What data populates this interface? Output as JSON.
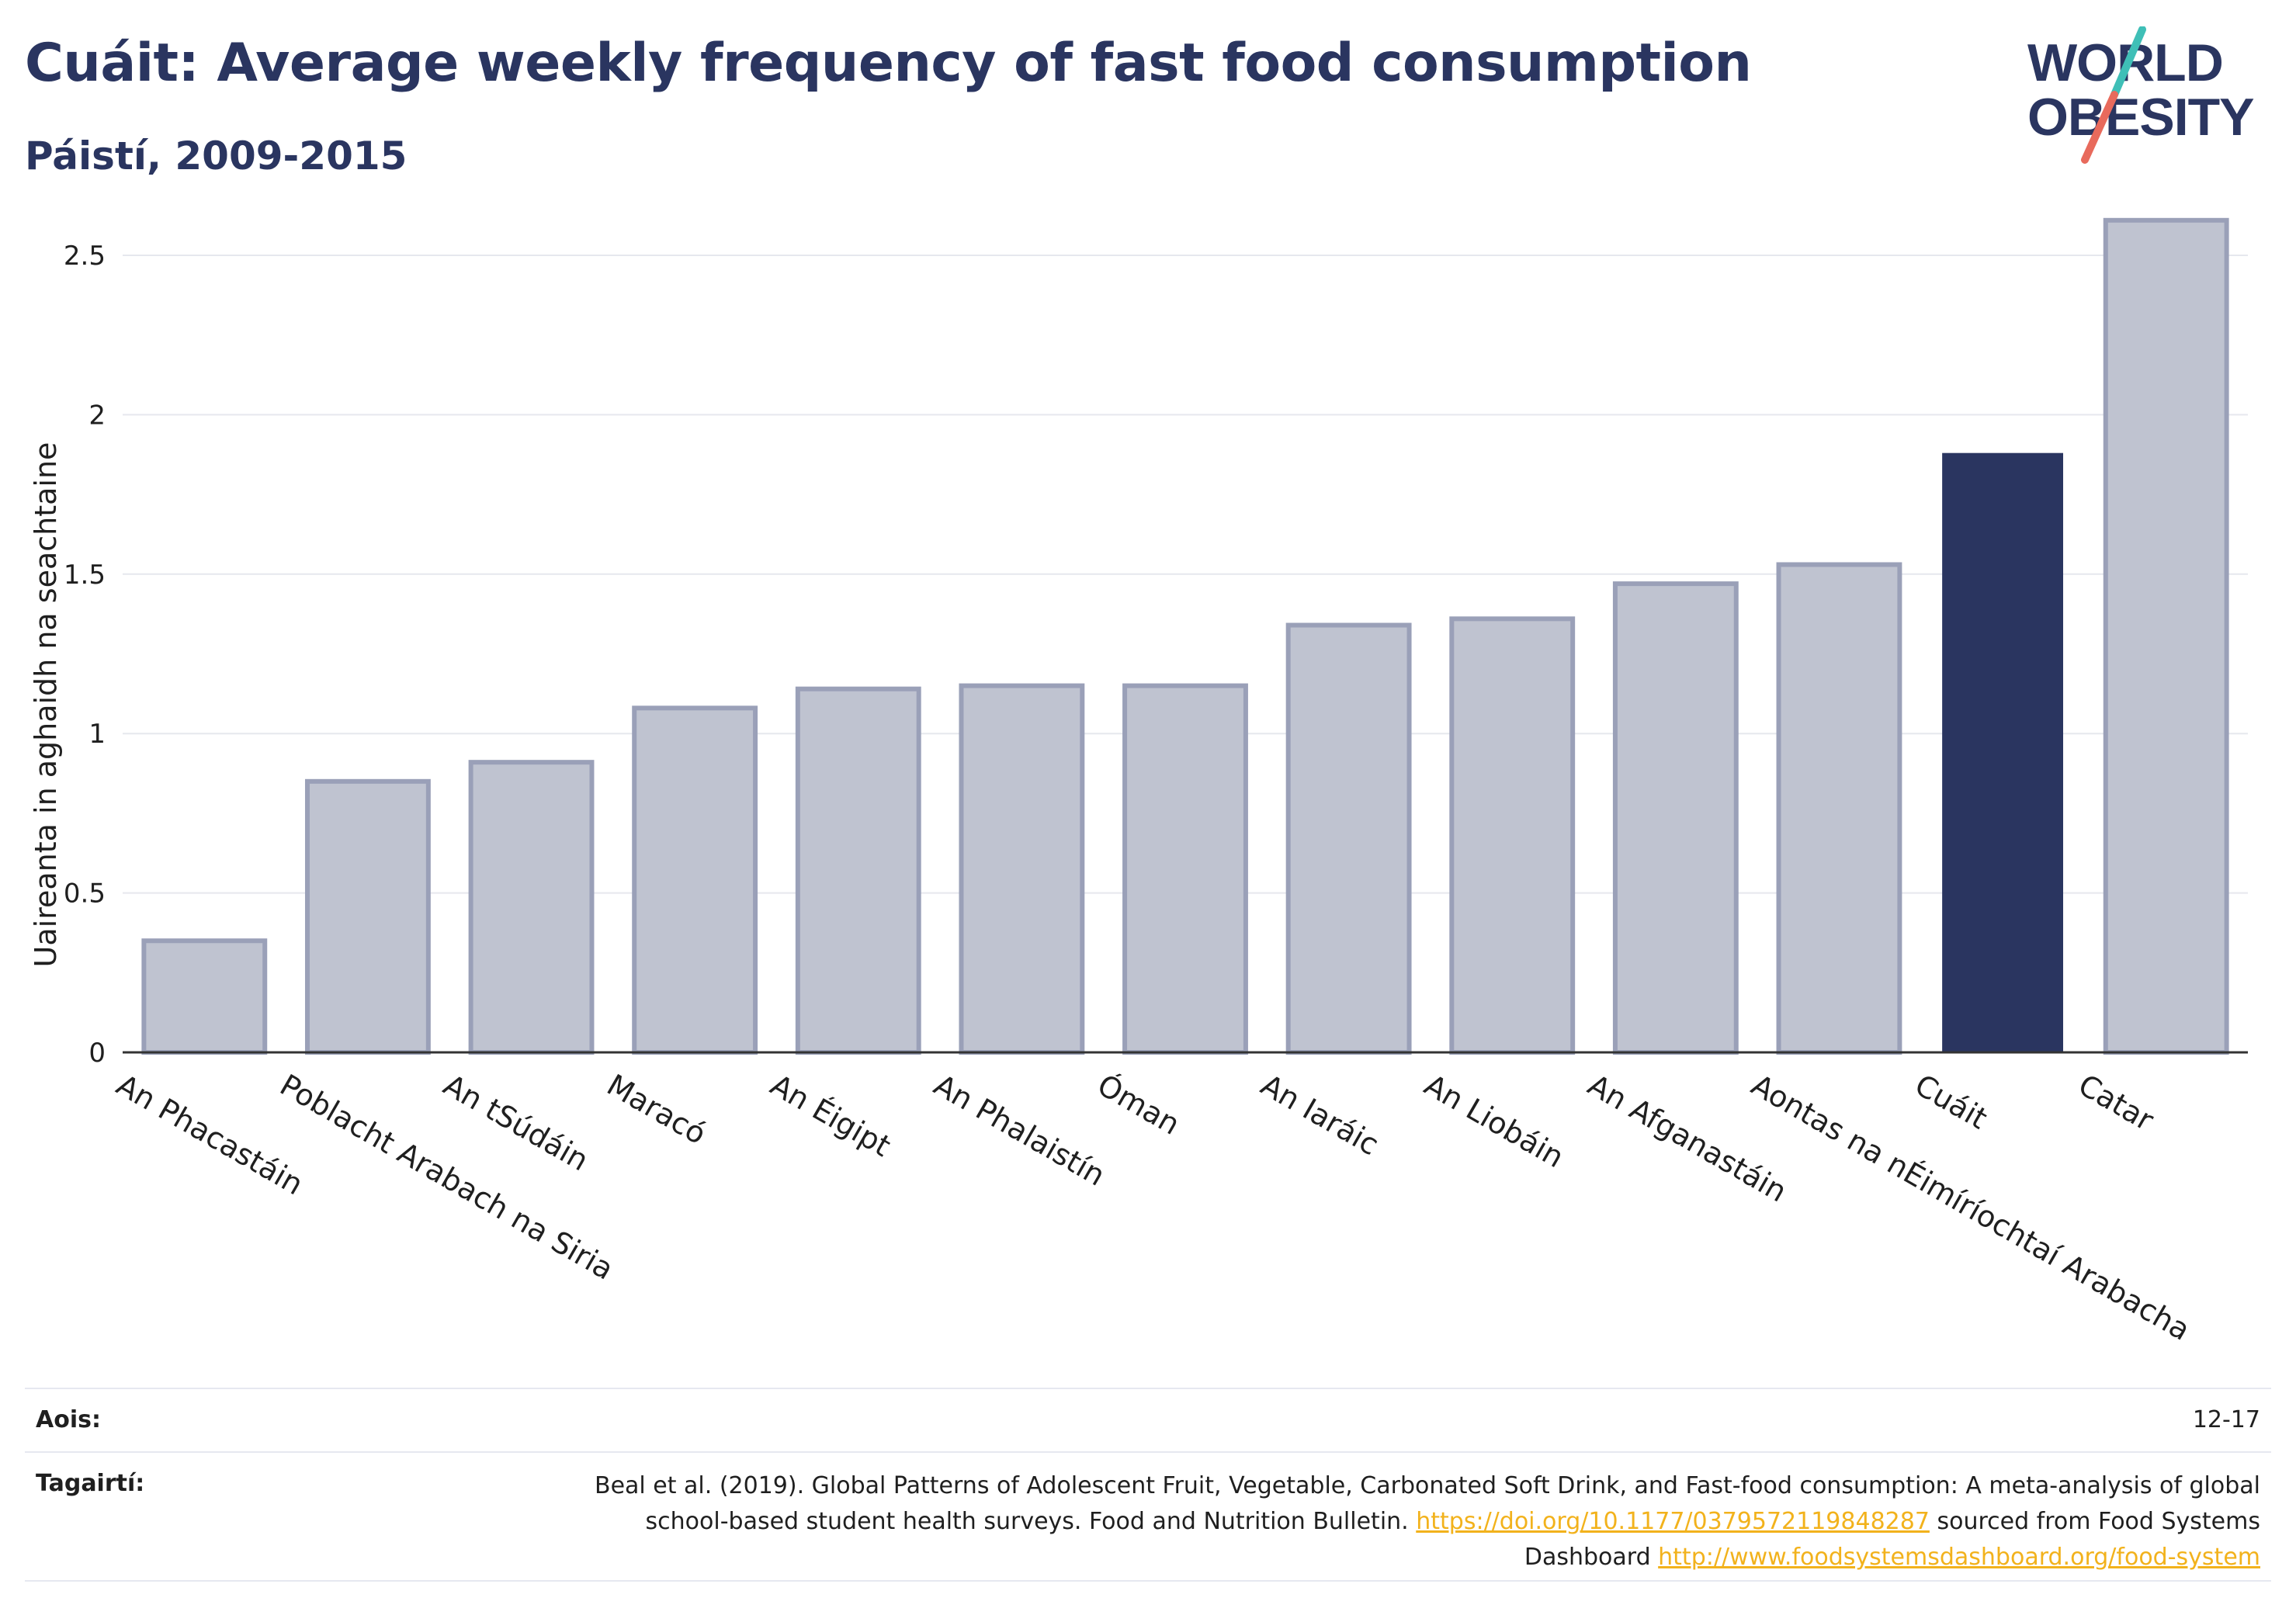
{
  "header": {
    "title": "Cuáit: Average weekly frequency of fast food consumption",
    "subtitle": "Páistí, 2009-2015"
  },
  "logo": {
    "line1": "WORLD",
    "line2": "OBESITY"
  },
  "colors": {
    "highlight": "#2a3560",
    "bar_fill": "#bfc3d0",
    "bar_stroke": "#9aa0b8",
    "accent_teal": "#3fbfb7",
    "accent_coral": "#e86a5c",
    "link": "#f2b21c"
  },
  "chart_data": {
    "type": "bar",
    "categories": [
      "An Phacastáin",
      "Poblacht Arabach na Siria",
      "An tSúdáin",
      "Maracó",
      "An Éigipt",
      "An Phalaistín",
      "Óman",
      "An Iaráic",
      "An Liobáin",
      "An Afganastáin",
      "Aontas na nÉimíríochtaí Arabacha",
      "Cuáit",
      "Catar"
    ],
    "values": [
      0.35,
      0.85,
      0.91,
      1.08,
      1.14,
      1.15,
      1.15,
      1.34,
      1.36,
      1.47,
      1.53,
      1.88,
      2.61
    ],
    "highlight": "Cuáit",
    "ylabel": "Uaireanta in aghaidh na seachtaine",
    "ylim": [
      0,
      2.7
    ],
    "yticks": [
      0,
      0.5,
      1,
      1.5,
      2,
      2.5
    ],
    "ytick_labels": [
      "0",
      "0.5",
      "1",
      "1.5",
      "2",
      "2.5"
    ],
    "grid": true
  },
  "footer": {
    "age_label": "Aois:",
    "age_value": "12-17",
    "refs_label": "Tagairtí:",
    "refs_text_1": "Beal et al. (2019). Global Patterns of Adolescent Fruit, Vegetable, Carbonated Soft Drink, and Fast-food consumption: A meta-analysis of global school-based student health surveys. Food and Nutrition Bulletin. ",
    "refs_link_1": "https://doi.org/10.1177/0379572119848287",
    "refs_text_2": " sourced from Food Systems Dashboard ",
    "refs_link_2": "http://www.foodsystemsdashboard.org/food-system"
  }
}
